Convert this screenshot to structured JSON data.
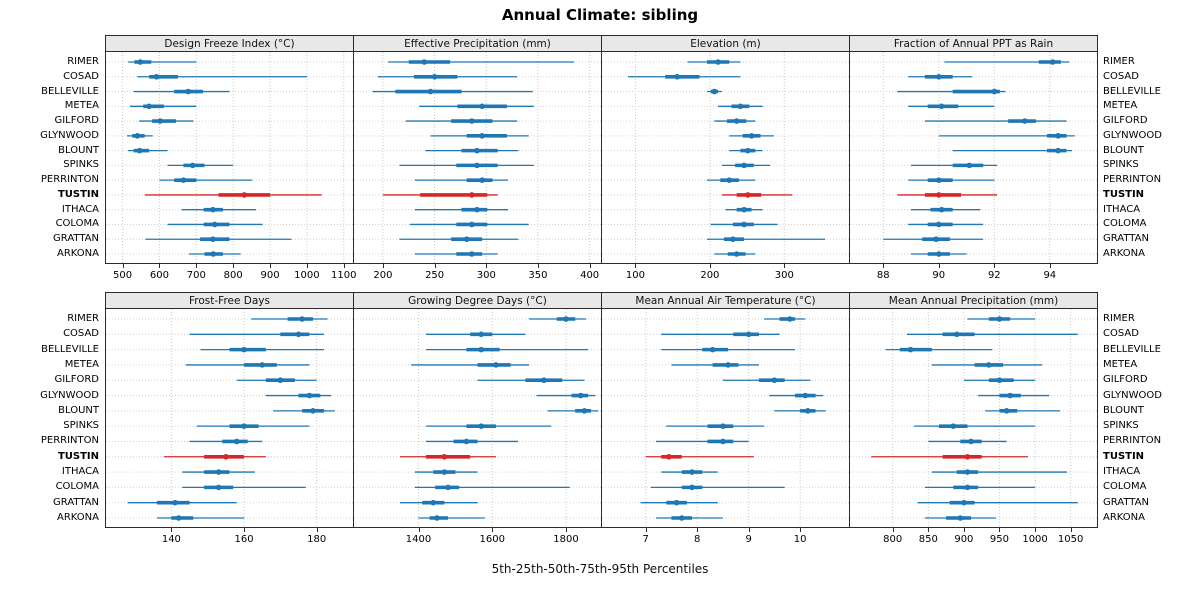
{
  "title": "Annual Climate: sibling",
  "footer": "5th-25th-50th-75th-95th Percentiles",
  "highlight_site": "TUSTIN",
  "percentile_levels": [
    5,
    25,
    50,
    75,
    95
  ],
  "colors": {
    "series": "#1f77b4",
    "highlight": "#d62728",
    "strip_bg": "#e8e8e8"
  },
  "sites": [
    "RIMER",
    "COSAD",
    "BELLEVILLE",
    "METEA",
    "GILFORD",
    "GLYNWOOD",
    "BLOUNT",
    "SPINKS",
    "PERRINTON",
    "TUSTIN",
    "ITHACA",
    "COLOMA",
    "GRATTAN",
    "ARKONA"
  ],
  "chart_data": [
    {
      "type": "dotplot",
      "panel": "Design Freeze Index (°C)",
      "grid_row": 0,
      "grid_col": 0,
      "xlim": [
        455,
        1125
      ],
      "ticks": [
        500,
        600,
        700,
        800,
        900,
        1000,
        1100
      ],
      "percentiles": [
        [
          515,
          532,
          548,
          578,
          700
        ],
        [
          540,
          572,
          592,
          650,
          1000
        ],
        [
          530,
          640,
          678,
          718,
          790
        ],
        [
          520,
          556,
          572,
          612,
          700
        ],
        [
          545,
          580,
          602,
          645,
          692
        ],
        [
          512,
          526,
          540,
          560,
          582
        ],
        [
          515,
          530,
          546,
          572,
          622
        ],
        [
          622,
          665,
          690,
          722,
          800
        ],
        [
          600,
          640,
          665,
          700,
          852
        ],
        [
          560,
          760,
          830,
          900,
          1040
        ],
        [
          660,
          720,
          745,
          772,
          862
        ],
        [
          622,
          720,
          750,
          790,
          880
        ],
        [
          562,
          710,
          745,
          790,
          958
        ],
        [
          680,
          722,
          746,
          772,
          820
        ]
      ]
    },
    {
      "type": "dotplot",
      "panel": "Effective Precipitation (mm)",
      "grid_row": 0,
      "grid_col": 1,
      "xlim": [
        172,
        411
      ],
      "ticks": [
        200,
        250,
        300,
        350,
        400
      ],
      "percentiles": [
        [
          205,
          225,
          240,
          265,
          385
        ],
        [
          195,
          230,
          250,
          272,
          330
        ],
        [
          190,
          212,
          246,
          276,
          345
        ],
        [
          235,
          272,
          296,
          320,
          346
        ],
        [
          222,
          266,
          286,
          306,
          330
        ],
        [
          246,
          281,
          296,
          320,
          341
        ],
        [
          241,
          276,
          291,
          311,
          331
        ],
        [
          216,
          271,
          291,
          311,
          346
        ],
        [
          231,
          281,
          296,
          306,
          321
        ],
        [
          200,
          236,
          286,
          301,
          311
        ],
        [
          231,
          276,
          291,
          301,
          321
        ],
        [
          226,
          271,
          286,
          301,
          341
        ],
        [
          216,
          266,
          281,
          296,
          331
        ],
        [
          231,
          271,
          286,
          296,
          311
        ]
      ]
    },
    {
      "type": "dotplot",
      "panel": "Elevation (m)",
      "grid_row": 0,
      "grid_col": 2,
      "xlim": [
        55,
        387
      ],
      "ticks": [
        100,
        200,
        300
      ],
      "percentiles": [
        [
          170,
          196,
          211,
          226,
          241
        ],
        [
          90,
          140,
          156,
          186,
          241
        ],
        [
          196,
          201,
          206,
          211,
          216
        ],
        [
          211,
          229,
          241,
          253,
          271
        ],
        [
          206,
          223,
          236,
          249,
          261
        ],
        [
          226,
          244,
          256,
          268,
          286
        ],
        [
          226,
          241,
          251,
          261,
          271
        ],
        [
          216,
          234,
          246,
          259,
          281
        ],
        [
          196,
          214,
          226,
          239,
          261
        ],
        [
          216,
          236,
          251,
          269,
          311
        ],
        [
          221,
          236,
          246,
          256,
          271
        ],
        [
          201,
          231,
          246,
          259,
          291
        ],
        [
          196,
          219,
          231,
          246,
          355
        ],
        [
          206,
          224,
          236,
          248,
          261
        ]
      ]
    },
    {
      "type": "dotplot",
      "panel": "Fraction of Annual PPT as Rain",
      "grid_row": 0,
      "grid_col": 3,
      "xlim": [
        86.8,
        95.7
      ],
      "ticks": [
        88,
        90,
        92,
        94
      ],
      "percentiles": [
        [
          90.2,
          93.6,
          94.1,
          94.4,
          94.7
        ],
        [
          88.9,
          89.5,
          90.0,
          90.5,
          91.2
        ],
        [
          88.5,
          90.5,
          92.0,
          92.2,
          92.4
        ],
        [
          88.9,
          89.6,
          90.1,
          90.7,
          92.0
        ],
        [
          89.5,
          92.5,
          93.1,
          93.5,
          94.6
        ],
        [
          90.0,
          93.9,
          94.3,
          94.6,
          94.9
        ],
        [
          90.5,
          93.9,
          94.3,
          94.6,
          94.8
        ],
        [
          89.0,
          90.5,
          91.1,
          91.6,
          92.1
        ],
        [
          88.9,
          89.6,
          90.0,
          90.5,
          92.0
        ],
        [
          88.5,
          89.5,
          90.0,
          90.8,
          92.1
        ],
        [
          89.0,
          89.7,
          90.1,
          90.5,
          91.5
        ],
        [
          88.9,
          89.6,
          90.0,
          90.5,
          91.6
        ],
        [
          88.0,
          89.4,
          89.9,
          90.4,
          91.6
        ],
        [
          89.0,
          89.6,
          90.0,
          90.4,
          91.0
        ]
      ]
    },
    {
      "type": "dotplot",
      "panel": "Frost-Free Days",
      "grid_row": 1,
      "grid_col": 0,
      "xlim": [
        122,
        190
      ],
      "ticks": [
        140,
        160,
        180
      ],
      "percentiles": [
        [
          162,
          172,
          176,
          179,
          183
        ],
        [
          145,
          170,
          175,
          178,
          182
        ],
        [
          148,
          156,
          160,
          166,
          182
        ],
        [
          144,
          160,
          165,
          169,
          178
        ],
        [
          158,
          166,
          170,
          174,
          180
        ],
        [
          166,
          175,
          178,
          181,
          184
        ],
        [
          168,
          176,
          179,
          182,
          185
        ],
        [
          147,
          156,
          160,
          164,
          178
        ],
        [
          145,
          154,
          158,
          161,
          165
        ],
        [
          138,
          149,
          155,
          160,
          166
        ],
        [
          143,
          149,
          153,
          156,
          163
        ],
        [
          143,
          149,
          153,
          157,
          177
        ],
        [
          128,
          136,
          141,
          145,
          158
        ],
        [
          136,
          140,
          142,
          146,
          160
        ]
      ]
    },
    {
      "type": "dotplot",
      "panel": "Growing Degree Days (°C)",
      "grid_row": 1,
      "grid_col": 1,
      "xlim": [
        1225,
        1895
      ],
      "ticks": [
        1400,
        1600,
        1800
      ],
      "percentiles": [
        [
          1700,
          1775,
          1800,
          1825,
          1855
        ],
        [
          1420,
          1540,
          1570,
          1600,
          1690
        ],
        [
          1420,
          1530,
          1570,
          1620,
          1860
        ],
        [
          1380,
          1560,
          1610,
          1650,
          1700
        ],
        [
          1560,
          1690,
          1740,
          1790,
          1850
        ],
        [
          1720,
          1815,
          1840,
          1860,
          1880
        ],
        [
          1750,
          1825,
          1850,
          1868,
          1888
        ],
        [
          1420,
          1530,
          1570,
          1610,
          1760
        ],
        [
          1420,
          1495,
          1530,
          1560,
          1670
        ],
        [
          1350,
          1420,
          1470,
          1540,
          1610
        ],
        [
          1390,
          1440,
          1470,
          1500,
          1560
        ],
        [
          1390,
          1445,
          1480,
          1510,
          1810
        ],
        [
          1350,
          1410,
          1440,
          1470,
          1560
        ],
        [
          1400,
          1430,
          1450,
          1480,
          1580
        ]
      ]
    },
    {
      "type": "dotplot",
      "panel": "Mean Annual Air Temperature (°C)",
      "grid_row": 1,
      "grid_col": 2,
      "xlim": [
        6.15,
        10.95
      ],
      "ticks": [
        7,
        8,
        9,
        10
      ],
      "percentiles": [
        [
          9.3,
          9.6,
          9.8,
          9.9,
          10.1
        ],
        [
          7.3,
          8.7,
          9.0,
          9.2,
          9.6
        ],
        [
          7.3,
          8.1,
          8.3,
          8.6,
          9.9
        ],
        [
          7.5,
          8.3,
          8.6,
          8.8,
          9.2
        ],
        [
          8.5,
          9.2,
          9.5,
          9.7,
          10.2
        ],
        [
          9.4,
          9.9,
          10.1,
          10.3,
          10.45
        ],
        [
          9.5,
          10.0,
          10.15,
          10.3,
          10.5
        ],
        [
          7.4,
          8.2,
          8.5,
          8.7,
          9.3
        ],
        [
          7.2,
          8.2,
          8.5,
          8.7,
          9.0
        ],
        [
          7.0,
          7.3,
          7.45,
          7.7,
          9.1
        ],
        [
          7.3,
          7.7,
          7.9,
          8.1,
          8.4
        ],
        [
          7.1,
          7.7,
          7.9,
          8.1,
          9.7
        ],
        [
          6.9,
          7.4,
          7.6,
          7.8,
          8.4
        ],
        [
          7.2,
          7.5,
          7.7,
          7.9,
          8.5
        ]
      ]
    },
    {
      "type": "dotplot",
      "panel": "Mean Annual Precipitation (mm)",
      "grid_row": 1,
      "grid_col": 3,
      "xlim": [
        740,
        1087
      ],
      "ticks": [
        800,
        850,
        900,
        950,
        1000,
        1050
      ],
      "percentiles": [
        [
          905,
          935,
          950,
          965,
          1000
        ],
        [
          820,
          870,
          890,
          915,
          1060
        ],
        [
          790,
          810,
          825,
          855,
          940
        ],
        [
          855,
          915,
          935,
          955,
          1010
        ],
        [
          900,
          935,
          950,
          970,
          1000
        ],
        [
          920,
          950,
          965,
          980,
          1020
        ],
        [
          930,
          950,
          960,
          975,
          1035
        ],
        [
          830,
          865,
          885,
          905,
          1000
        ],
        [
          850,
          895,
          910,
          925,
          960
        ],
        [
          770,
          870,
          905,
          925,
          990
        ],
        [
          855,
          890,
          905,
          920,
          1045
        ],
        [
          845,
          885,
          905,
          920,
          1000
        ],
        [
          835,
          880,
          900,
          915,
          1060
        ],
        [
          845,
          875,
          895,
          910,
          945
        ]
      ]
    }
  ]
}
